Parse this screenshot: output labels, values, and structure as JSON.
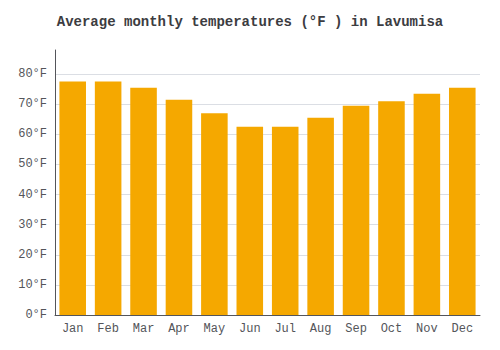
{
  "chart_data": {
    "type": "bar",
    "title": "Average monthly temperatures (°F ) in Lavumisa",
    "categories": [
      "Jan",
      "Feb",
      "Mar",
      "Apr",
      "May",
      "Jun",
      "Jul",
      "Aug",
      "Sep",
      "Oct",
      "Nov",
      "Dec"
    ],
    "values": [
      77.5,
      77.5,
      75.5,
      71.5,
      67.0,
      62.5,
      62.5,
      65.5,
      69.5,
      71.0,
      73.5,
      75.5
    ],
    "color": "#F5A800",
    "ylim": [
      0,
      88
    ],
    "yticks": [
      {
        "value": 0,
        "label": "0°F"
      },
      {
        "value": 10,
        "label": "10°F"
      },
      {
        "value": 20,
        "label": "20°F"
      },
      {
        "value": 30,
        "label": "30°F"
      },
      {
        "value": 40,
        "label": "40°F"
      },
      {
        "value": 50,
        "label": "50°F"
      },
      {
        "value": 60,
        "label": "60°F"
      },
      {
        "value": 70,
        "label": "70°F"
      },
      {
        "value": 80,
        "label": "80°F"
      }
    ],
    "grid": true
  }
}
